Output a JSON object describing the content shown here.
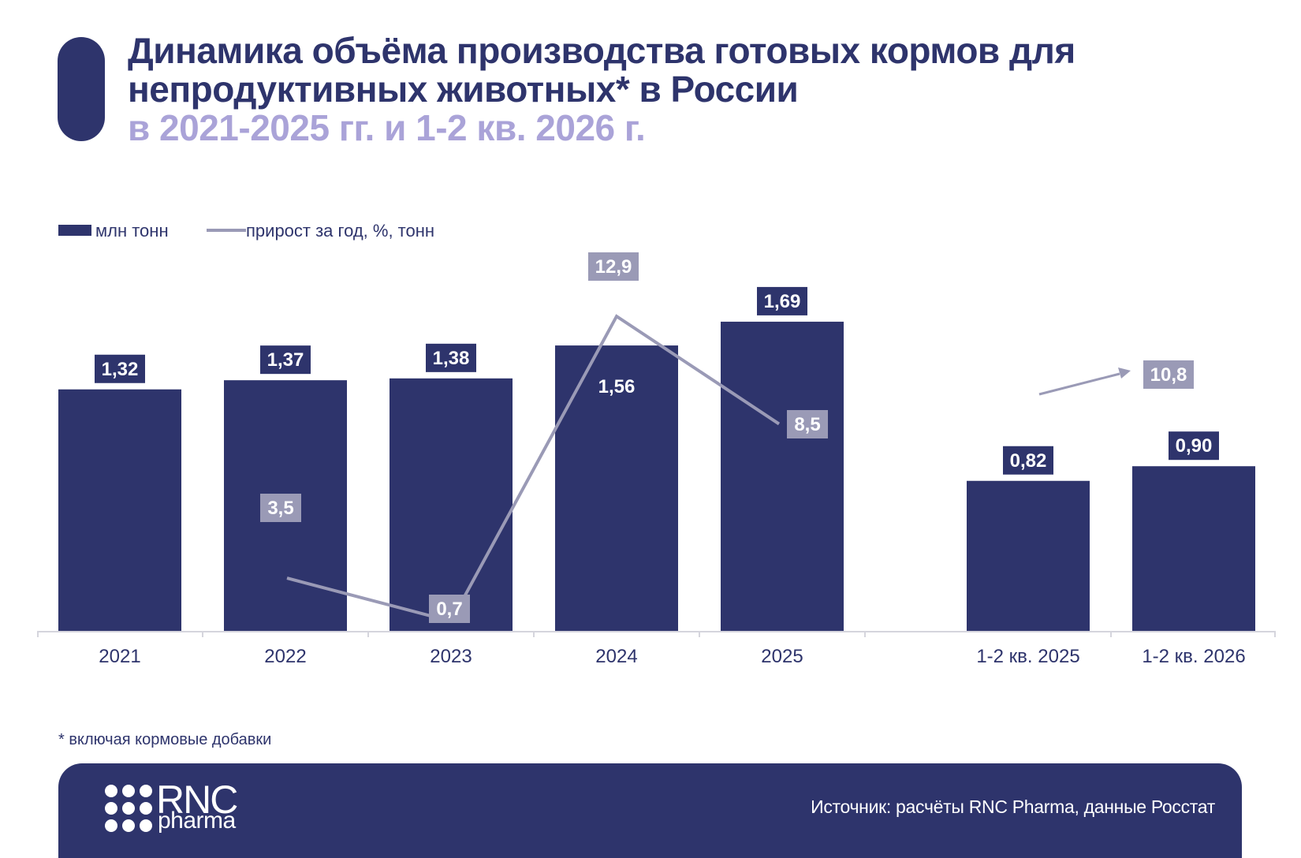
{
  "title": {
    "line1": "Динамика объёма производства готовых кормов для",
    "line2": "непродуктивных животных* в России",
    "line3": "в 2021-2025 гг. и 1-2 кв. 2026 г."
  },
  "colors": {
    "bar": "#2e346c",
    "line": "#9a9ab6",
    "subtitle": "#aaa3d8"
  },
  "chart_data": {
    "type": "bar",
    "categories": [
      "2021",
      "2022",
      "2023",
      "2024",
      "2025",
      "1-2 кв. 2025",
      "1-2 кв. 2026"
    ],
    "series": [
      {
        "name": "млн тонн",
        "type": "bar",
        "values": [
          1.32,
          1.37,
          1.38,
          1.56,
          1.69,
          0.82,
          0.9
        ],
        "labels": [
          "1,32",
          "1,37",
          "1,38",
          "1,56",
          "1,69",
          "0,82",
          "0,90"
        ]
      },
      {
        "name": "прирост за год, %, тонн",
        "type": "line",
        "values": [
          null,
          3.5,
          0.7,
          12.9,
          8.5,
          null,
          10.8
        ],
        "labels": [
          "",
          "3,5",
          "0,7",
          "12,9",
          "8,5",
          "",
          "10,8"
        ]
      }
    ],
    "grid": false,
    "legend": "top-left"
  },
  "footnote": "* включая кормовые добавки",
  "footer": {
    "logo_main": "RNC",
    "logo_sub": "pharma",
    "source": "Источник: расчёты RNC Pharma, данные Росстат"
  }
}
